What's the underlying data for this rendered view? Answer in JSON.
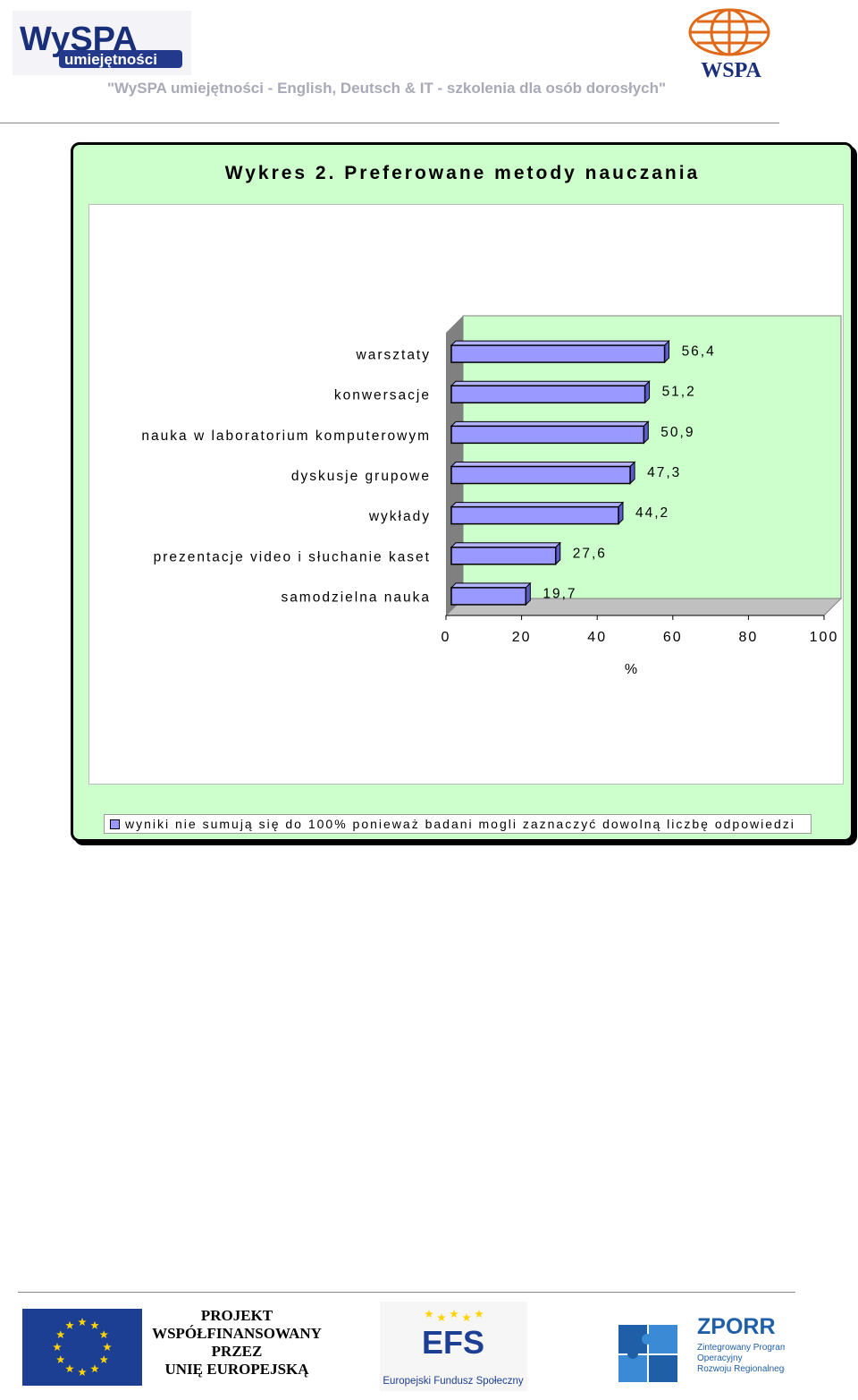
{
  "header": {
    "logo_left_text_1": "WySPA",
    "logo_left_text_2": "umiejętności",
    "logo_right_text": "WSPA",
    "tagline": "\"WySPA umiejętności - English, Deutsch & IT - szkolenia dla osób dorosłych\""
  },
  "chart_data": {
    "type": "bar",
    "orientation": "horizontal",
    "title": "Wykres 2. Preferowane metody nauczania",
    "categories": [
      "warsztaty",
      "konwersacje",
      "nauka w laboratorium komputerowym",
      "dyskusje grupowe",
      "wykłady",
      "prezentacje video i słuchanie kaset",
      "samodzielna nauka"
    ],
    "values": [
      56.4,
      51.2,
      50.9,
      47.3,
      44.2,
      27.6,
      19.7
    ],
    "value_labels": [
      "56,4",
      "51,2",
      "50,9",
      "47,3",
      "44,2",
      "27,6",
      "19,7"
    ],
    "xlim": [
      0,
      100
    ],
    "xticks": [
      "0",
      "20",
      "40",
      "60",
      "80",
      "100"
    ],
    "xlabel": "%",
    "legend": "wyniki nie sumują się do 100% ponieważ badani mogli zaznaczyć dowolną liczbę odpowiedzi",
    "legend_position": "bottom",
    "grid": false,
    "bar_color": "#9999ff",
    "wall_color": "#ccffcc",
    "frame_color": "#ccffcc"
  },
  "footer": {
    "project_lines": [
      "PROJEKT",
      "WSPÓŁFINANSOWANY",
      "PRZEZ",
      "UNIĘ EUROPEJSKĄ"
    ],
    "efs_title": "EFS",
    "efs_caption": "Europejski Fundusz Społeczny",
    "zporr_title": "ZPORR",
    "zporr_lines": [
      "Zintegrowany Program",
      "Operacyjny",
      "Rozwoju Regionalnego"
    ]
  }
}
